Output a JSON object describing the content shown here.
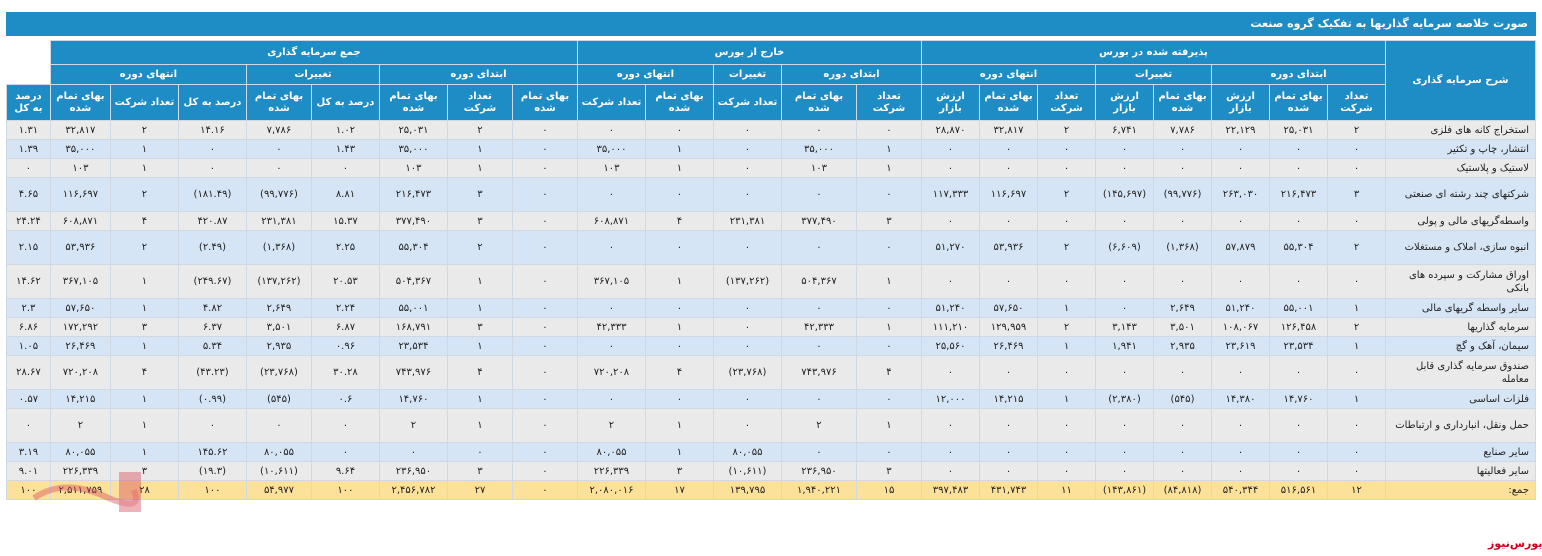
{
  "title": "صورت خلاصه سرمایه گذاریها به تفکیک گروه صنعت",
  "headers": {
    "description": "شرح سرمایه گذاری",
    "groups": [
      "پذیرفته شده در بورس",
      "خارج از بورس",
      "جمع سرمایه گذاری"
    ],
    "subgroups": {
      "listed": [
        "ابتدای دوره",
        "تغییرات",
        "انتهای دوره"
      ],
      "unlisted": [
        "ابتدای دوره",
        "تغییرات",
        "انتهای دوره"
      ],
      "total": [
        "ابتدای دوره",
        "تغییرات",
        "انتهای دوره"
      ]
    },
    "columns": [
      "تعداد شرکت",
      "بهای تمام شده",
      "ارزش بازار",
      "بهای تمام شده",
      "ارزش بازار",
      "تعداد شرکت",
      "بهای تمام شده",
      "ارزش بازار",
      "تعداد شرکت",
      "بهای تمام شده",
      "تعداد شرکت",
      "بهای تمام شده",
      "تعداد شرکت",
      "بهای تمام شده",
      "تعداد شرکت",
      "بهای تمام شده",
      "درصد به کل",
      "بهای تمام شده",
      "درصد به کل",
      "تعداد شرکت",
      "بهای تمام شده",
      "درصد به کل"
    ]
  },
  "rows": [
    {
      "label": "استخراج کانه های فلزی",
      "cells": [
        "۲",
        "۲۵,۰۳۱",
        "۲۲,۱۲۹",
        "۷,۷۸۶",
        "۶,۷۴۱",
        "۲",
        "۳۲,۸۱۷",
        "۲۸,۸۷۰",
        "۰",
        "۰",
        "۰",
        "۰",
        "۰",
        "۰",
        "۲",
        "۲۵,۰۳۱",
        "۱.۰۲",
        "۷,۷۸۶",
        "۱۴.۱۶",
        "۲",
        "۳۲,۸۱۷",
        "۱.۳۱"
      ],
      "neg": []
    },
    {
      "label": "انتشار، چاپ و تکثیر",
      "cells": [
        "۰",
        "۰",
        "۰",
        "۰",
        "۰",
        "۰",
        "۰",
        "۰",
        "۱",
        "۳۵,۰۰۰",
        "۰",
        "۱",
        "۳۵,۰۰۰",
        "۰",
        "۱",
        "۳۵,۰۰۰",
        "۱.۴۳",
        "۰",
        "۰",
        "۱",
        "۳۵,۰۰۰",
        "۱.۳۹"
      ],
      "neg": []
    },
    {
      "label": "لاستیک و پلاستیک",
      "cells": [
        "۰",
        "۰",
        "۰",
        "۰",
        "۰",
        "۰",
        "۰",
        "۰",
        "۱",
        "۱۰۳",
        "۰",
        "۱",
        "۱۰۳",
        "۰",
        "۱",
        "۱۰۳",
        "۰",
        "۰",
        "۰",
        "۱",
        "۱۰۳",
        "۰"
      ],
      "neg": []
    },
    {
      "label": "شرکتهای چند رشته ای صنعتی",
      "cells": [
        "۳",
        "۲۱۶,۴۷۳",
        "۲۶۳,۰۳۰",
        "(۹۹,۷۷۶)",
        "(۱۴۵,۶۹۷)",
        "۲",
        "۱۱۶,۶۹۷",
        "۱۱۷,۳۳۳",
        "۰",
        "۰",
        "۰",
        "۰",
        "۰",
        "۰",
        "۳",
        "۲۱۶,۴۷۳",
        "۸.۸۱",
        "(۹۹,۷۷۶)",
        "(۱۸۱.۴۹)",
        "۲",
        "۱۱۶,۶۹۷",
        "۴.۶۵"
      ],
      "neg": [
        3,
        4,
        17,
        18
      ]
    },
    {
      "label": "واسطه‌گریهای مالی و پولی",
      "cells": [
        "۰",
        "۰",
        "۰",
        "۰",
        "۰",
        "۰",
        "۰",
        "۰",
        "۳",
        "۳۷۷,۴۹۰",
        "۲۳۱,۳۸۱",
        "۴",
        "۶۰۸,۸۷۱",
        "۰",
        "۳",
        "۳۷۷,۴۹۰",
        "۱۵.۳۷",
        "۲۳۱,۳۸۱",
        "۴۲۰.۸۷",
        "۴",
        "۶۰۸,۸۷۱",
        "۲۴.۲۴"
      ],
      "neg": []
    },
    {
      "label": "انبوه سازی، املاک و مستغلات",
      "cells": [
        "۲",
        "۵۵,۳۰۴",
        "۵۷,۸۷۹",
        "(۱,۳۶۸)",
        "(۶,۶۰۹)",
        "۲",
        "۵۳,۹۳۶",
        "۵۱,۲۷۰",
        "۰",
        "۰",
        "۰",
        "۰",
        "۰",
        "۰",
        "۲",
        "۵۵,۳۰۴",
        "۲.۲۵",
        "(۱,۳۶۸)",
        "(۲.۴۹)",
        "۲",
        "۵۳,۹۳۶",
        "۲.۱۵"
      ],
      "neg": [
        3,
        4,
        17,
        18
      ]
    },
    {
      "label": "اوراق مشارکت و سپرده های بانکی",
      "cells": [
        "۰",
        "۰",
        "۰",
        "۰",
        "۰",
        "۰",
        "۰",
        "۰",
        "۱",
        "۵۰۴,۳۶۷",
        "(۱۳۷,۲۶۲)",
        "۱",
        "۳۶۷,۱۰۵",
        "۰",
        "۱",
        "۵۰۴,۳۶۷",
        "۲۰.۵۳",
        "(۱۳۷,۲۶۲)",
        "(۲۴۹.۶۷)",
        "۱",
        "۳۶۷,۱۰۵",
        "۱۴.۶۲"
      ],
      "neg": [
        10,
        17,
        18
      ]
    },
    {
      "label": "سایر واسطه گریهای مالی",
      "cells": [
        "۱",
        "۵۵,۰۰۱",
        "۵۱,۲۴۰",
        "۲,۶۴۹",
        "۰",
        "۱",
        "۵۷,۶۵۰",
        "۵۱,۲۴۰",
        "۰",
        "۰",
        "۰",
        "۰",
        "۰",
        "۰",
        "۱",
        "۵۵,۰۰۱",
        "۲.۲۴",
        "۲,۶۴۹",
        "۴.۸۲",
        "۱",
        "۵۷,۶۵۰",
        "۲.۳"
      ],
      "neg": []
    },
    {
      "label": "سرمایه گذاریها",
      "cells": [
        "۲",
        "۱۲۶,۴۵۸",
        "۱۰۸,۰۶۷",
        "۳,۵۰۱",
        "۳,۱۴۳",
        "۲",
        "۱۲۹,۹۵۹",
        "۱۱۱,۲۱۰",
        "۱",
        "۴۲,۳۳۳",
        "۰",
        "۱",
        "۴۲,۳۳۳",
        "۰",
        "۳",
        "۱۶۸,۷۹۱",
        "۶.۸۷",
        "۳,۵۰۱",
        "۶.۳۷",
        "۳",
        "۱۷۲,۲۹۲",
        "۶.۸۶"
      ],
      "neg": []
    },
    {
      "label": "سیمان، آهک و گچ",
      "cells": [
        "۱",
        "۲۳,۵۳۴",
        "۲۳,۶۱۹",
        "۲,۹۳۵",
        "۱,۹۴۱",
        "۱",
        "۲۶,۴۶۹",
        "۲۵,۵۶۰",
        "۰",
        "۰",
        "۰",
        "۰",
        "۰",
        "۰",
        "۱",
        "۲۳,۵۳۴",
        "۰.۹۶",
        "۲,۹۳۵",
        "۵.۳۴",
        "۱",
        "۲۶,۴۶۹",
        "۱.۰۵"
      ],
      "neg": []
    },
    {
      "label": "صندوق سرمایه گذاری قابل معامله",
      "cells": [
        "۰",
        "۰",
        "۰",
        "۰",
        "۰",
        "۰",
        "۰",
        "۰",
        "۴",
        "۷۴۳,۹۷۶",
        "(۲۳,۷۶۸)",
        "۴",
        "۷۲۰,۲۰۸",
        "۰",
        "۴",
        "۷۴۳,۹۷۶",
        "۳۰.۲۸",
        "(۲۳,۷۶۸)",
        "(۴۳.۲۳)",
        "۴",
        "۷۲۰,۲۰۸",
        "۲۸.۶۷"
      ],
      "neg": [
        10,
        17,
        18
      ]
    },
    {
      "label": "فلزات اساسی",
      "cells": [
        "۱",
        "۱۴,۷۶۰",
        "۱۴,۳۸۰",
        "(۵۴۵)",
        "(۲,۳۸۰)",
        "۱",
        "۱۴,۲۱۵",
        "۱۲,۰۰۰",
        "۰",
        "۰",
        "۰",
        "۰",
        "۰",
        "۰",
        "۱",
        "۱۴,۷۶۰",
        "۰.۶",
        "(۵۴۵)",
        "(۰.۹۹)",
        "۱",
        "۱۴,۲۱۵",
        "۰.۵۷"
      ],
      "neg": [
        3,
        4,
        17,
        18
      ]
    },
    {
      "label": "حمل ونقل، انبارداری و ارتباطات",
      "cells": [
        "۰",
        "۰",
        "۰",
        "۰",
        "۰",
        "۰",
        "۰",
        "۰",
        "۱",
        "۲",
        "۰",
        "۱",
        "۲",
        "۰",
        "۱",
        "۲",
        "۰",
        "۰",
        "۰",
        "۱",
        "۲",
        "۰"
      ],
      "neg": []
    },
    {
      "label": "سایر صنایع",
      "cells": [
        "۰",
        "۰",
        "۰",
        "۰",
        "۰",
        "۰",
        "۰",
        "۰",
        "۰",
        "۰",
        "۸۰,۰۵۵",
        "۱",
        "۸۰,۰۵۵",
        "۰",
        "۰",
        "۰",
        "۰",
        "۸۰,۰۵۵",
        "۱۴۵.۶۲",
        "۱",
        "۸۰,۰۵۵",
        "۳.۱۹"
      ],
      "neg": []
    },
    {
      "label": "سایر فعالیتها",
      "cells": [
        "۰",
        "۰",
        "۰",
        "۰",
        "۰",
        "۰",
        "۰",
        "۰",
        "۳",
        "۲۳۶,۹۵۰",
        "(۱۰,۶۱۱)",
        "۳",
        "۲۲۶,۳۳۹",
        "۰",
        "۳",
        "۲۳۶,۹۵۰",
        "۹.۶۴",
        "(۱۰,۶۱۱)",
        "(۱۹.۳)",
        "۳",
        "۲۲۶,۳۳۹",
        "۹.۰۱"
      ],
      "neg": [
        10,
        17,
        18
      ]
    }
  ],
  "total": {
    "label": "جمع:",
    "cells": [
      "۱۲",
      "۵۱۶,۵۶۱",
      "۵۴۰,۳۴۴",
      "(۸۴,۸۱۸)",
      "(۱۴۳,۸۶۱)",
      "۱۱",
      "۴۳۱,۷۴۳",
      "۳۹۷,۴۸۳",
      "۱۵",
      "۱,۹۴۰,۲۲۱",
      "۱۳۹,۷۹۵",
      "۱۷",
      "۲,۰۸۰,۰۱۶",
      "۰",
      "۲۷",
      "۲,۴۵۶,۷۸۲",
      "۱۰۰",
      "۵۴,۹۷۷",
      "۱۰۰",
      "۲۸",
      "۲,۵۱۱,۷۵۹",
      "۱۰۰"
    ],
    "neg": [
      3,
      4
    ]
  },
  "logo": "بورس‌نیوز",
  "colors": {
    "header": "#1e8dc6",
    "row_odd": "#eaeaea",
    "row_even": "#d6e5f5",
    "total": "#fbe199",
    "negative": "#e0001b"
  }
}
